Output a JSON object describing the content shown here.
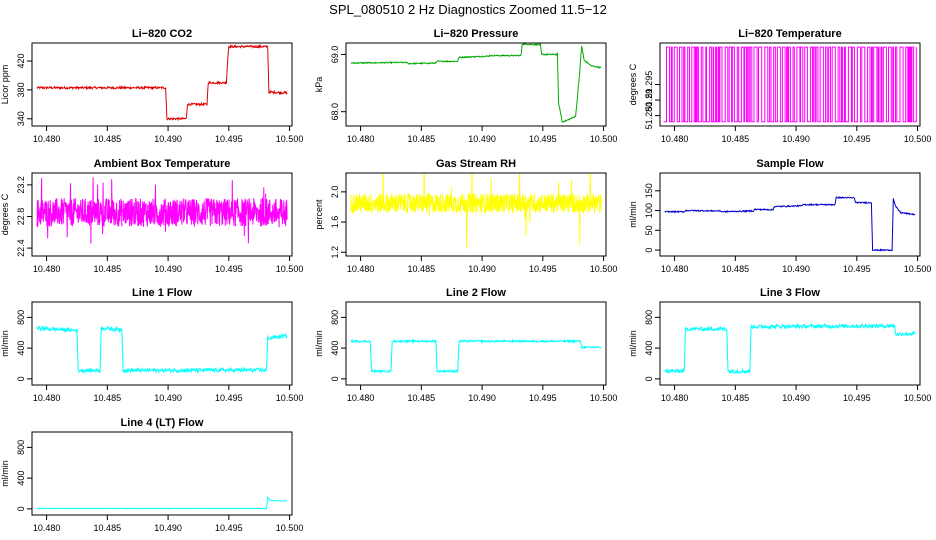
{
  "title": "SPL_080510  2 Hz Diagnostics Zoomed 11.5−12",
  "chart_data": [
    {
      "type": "line",
      "title": "Li−820 CO2",
      "ylabel": "Licor ppm",
      "color": "#dd0000",
      "xlim": [
        10.4788,
        10.5002
      ],
      "ylim": [
        330,
        445
      ],
      "yticks": [
        340,
        380,
        420
      ],
      "xticks": [
        10.48,
        10.485,
        10.49,
        10.495,
        10.5
      ],
      "xtick_labels": [
        "10.480",
        "10.485",
        "10.490",
        "10.495",
        "10.500"
      ],
      "noise": 1.5,
      "points": [
        [
          10.4792,
          383
        ],
        [
          10.4898,
          383
        ],
        [
          10.4899,
          340
        ],
        [
          10.4915,
          340
        ],
        [
          10.4916,
          360
        ],
        [
          10.4932,
          360
        ],
        [
          10.4933,
          390
        ],
        [
          10.4948,
          390
        ],
        [
          10.4949,
          420
        ],
        [
          10.495,
          440
        ],
        [
          10.4982,
          440
        ],
        [
          10.4983,
          377
        ],
        [
          10.4998,
          376
        ]
      ]
    },
    {
      "type": "line",
      "title": "Li−820 Pressure",
      "ylabel": "kPa",
      "color": "#00aa00",
      "xlim": [
        10.4788,
        10.5002
      ],
      "ylim": [
        67.75,
        69.2
      ],
      "yticks": [
        68.0,
        69.0
      ],
      "ytick_labels": [
        "68.0",
        "69.0"
      ],
      "xticks": [
        10.48,
        10.485,
        10.49,
        10.495,
        10.5
      ],
      "xtick_labels": [
        "10.480",
        "10.485",
        "10.490",
        "10.495",
        "10.500"
      ],
      "noise": 0.01,
      "points": [
        [
          10.4792,
          68.85
        ],
        [
          10.4838,
          68.86
        ],
        [
          10.4839,
          68.84
        ],
        [
          10.4862,
          68.85
        ],
        [
          10.4863,
          68.88
        ],
        [
          10.488,
          68.88
        ],
        [
          10.4881,
          68.95
        ],
        [
          10.4905,
          68.97
        ],
        [
          10.4906,
          68.98
        ],
        [
          10.4932,
          68.98
        ],
        [
          10.4933,
          69.18
        ],
        [
          10.4948,
          69.17
        ],
        [
          10.4949,
          69.0
        ],
        [
          10.4962,
          69.0
        ],
        [
          10.4963,
          68.15
        ],
        [
          10.4966,
          67.82
        ],
        [
          10.497,
          67.85
        ],
        [
          10.4977,
          67.92
        ],
        [
          10.498,
          68.6
        ],
        [
          10.4982,
          69.15
        ],
        [
          10.4984,
          68.9
        ],
        [
          10.499,
          68.8
        ],
        [
          10.4998,
          68.77
        ]
      ]
    },
    {
      "type": "line",
      "title": "Li−820 Temperature",
      "ylabel": "degrees C",
      "color": "#ff00ff",
      "xlim": [
        10.4788,
        10.5002
      ],
      "ylim": [
        51.275,
        51.315
      ],
      "yticks": [
        51.28,
        51.295
      ],
      "ytick_labels": [
        "51.280",
        "51.295"
      ],
      "extra_tick_labels": [
        "51.29"
      ],
      "xticks": [
        10.48,
        10.485,
        10.49,
        10.495,
        10.5
      ],
      "xtick_labels": [
        "10.480",
        "10.485",
        "10.490",
        "10.495",
        "10.500"
      ],
      "mode": "toggle",
      "low": 51.277,
      "high": 51.313
    },
    {
      "type": "line",
      "title": "Ambient Box Temperature",
      "ylabel": "degrees C",
      "color": "#ff00ff",
      "xlim": [
        10.4788,
        10.5002
      ],
      "ylim": [
        22.3,
        23.35
      ],
      "yticks": [
        22.4,
        22.8,
        23.2
      ],
      "ytick_labels": [
        "22.4",
        "22.8",
        "23.2"
      ],
      "xticks": [
        10.48,
        10.485,
        10.49,
        10.495,
        10.5
      ],
      "xtick_labels": [
        "10.480",
        "10.485",
        "10.490",
        "10.495",
        "10.500"
      ],
      "mode": "band",
      "center": 22.85,
      "spread": 0.18,
      "spikes": 0.45
    },
    {
      "type": "line",
      "title": "Gas Stream RH",
      "ylabel": "percent",
      "color": "#ffff00",
      "xlim": [
        10.4788,
        10.5002
      ],
      "ylim": [
        1.15,
        2.25
      ],
      "yticks": [
        1.2,
        1.6,
        2.0
      ],
      "ytick_labels": [
        "1.2",
        "1.6",
        "2.0"
      ],
      "xticks": [
        10.48,
        10.485,
        10.49,
        10.495,
        10.5
      ],
      "xtick_labels": [
        "10.480",
        "10.485",
        "10.490",
        "10.495",
        "10.500"
      ],
      "mode": "band",
      "center": 1.85,
      "spread": 0.13,
      "spikes": 0.6
    },
    {
      "type": "line",
      "title": "Sample Flow",
      "ylabel": "ml/min",
      "color": "#0000cc",
      "xlim": [
        10.4788,
        10.5002
      ],
      "ylim": [
        -15,
        195
      ],
      "yticks": [
        0,
        50,
        100,
        150
      ],
      "xticks": [
        10.48,
        10.485,
        10.49,
        10.495,
        10.5
      ],
      "xtick_labels": [
        "10.480",
        "10.485",
        "10.490",
        "10.495",
        "10.500"
      ],
      "noise": 1.5,
      "points": [
        [
          10.4792,
          97
        ],
        [
          10.4808,
          97
        ],
        [
          10.4809,
          100
        ],
        [
          10.4838,
          99
        ],
        [
          10.4839,
          97
        ],
        [
          10.4865,
          99
        ],
        [
          10.4866,
          103
        ],
        [
          10.4881,
          102
        ],
        [
          10.4882,
          110
        ],
        [
          10.4905,
          112
        ],
        [
          10.4906,
          115
        ],
        [
          10.4932,
          115
        ],
        [
          10.4933,
          133
        ],
        [
          10.4948,
          132
        ],
        [
          10.4949,
          120
        ],
        [
          10.4962,
          120
        ],
        [
          10.4963,
          0
        ],
        [
          10.4979,
          0
        ],
        [
          10.498,
          130
        ],
        [
          10.4982,
          110
        ],
        [
          10.4986,
          95
        ],
        [
          10.4992,
          92
        ],
        [
          10.4998,
          90
        ]
      ]
    },
    {
      "type": "line",
      "title": "Line 1 Flow",
      "ylabel": "ml/min",
      "color": "#00ffff",
      "xlim": [
        10.4788,
        10.5002
      ],
      "ylim": [
        -80,
        1000
      ],
      "yticks": [
        0,
        400,
        800
      ],
      "xticks": [
        10.48,
        10.485,
        10.49,
        10.495,
        10.5
      ],
      "xtick_labels": [
        "10.480",
        "10.485",
        "10.490",
        "10.495",
        "10.500"
      ],
      "noise": 25,
      "points": [
        [
          10.4792,
          660
        ],
        [
          10.4825,
          630
        ],
        [
          10.4826,
          110
        ],
        [
          10.4844,
          110
        ],
        [
          10.4845,
          660
        ],
        [
          10.4862,
          640
        ],
        [
          10.4863,
          110
        ],
        [
          10.4981,
          115
        ],
        [
          10.4982,
          530
        ],
        [
          10.4998,
          560
        ]
      ]
    },
    {
      "type": "line",
      "title": "Line 2 Flow",
      "ylabel": "ml/min",
      "color": "#00ffff",
      "xlim": [
        10.4788,
        10.5002
      ],
      "ylim": [
        -80,
        1000
      ],
      "yticks": [
        0,
        400,
        800
      ],
      "xticks": [
        10.48,
        10.485,
        10.49,
        10.495,
        10.5
      ],
      "xtick_labels": [
        "10.480",
        "10.485",
        "10.490",
        "10.495",
        "10.500"
      ],
      "noise": 12,
      "points": [
        [
          10.4792,
          490
        ],
        [
          10.4808,
          490
        ],
        [
          10.4809,
          100
        ],
        [
          10.4825,
          100
        ],
        [
          10.4826,
          490
        ],
        [
          10.4862,
          490
        ],
        [
          10.4863,
          100
        ],
        [
          10.488,
          100
        ],
        [
          10.4881,
          490
        ],
        [
          10.4981,
          490
        ],
        [
          10.4982,
          410
        ],
        [
          10.4998,
          410
        ]
      ]
    },
    {
      "type": "line",
      "title": "Line 3 Flow",
      "ylabel": "ml/min",
      "color": "#00ffff",
      "xlim": [
        10.4788,
        10.5002
      ],
      "ylim": [
        -80,
        1000
      ],
      "yticks": [
        0,
        400,
        800
      ],
      "xticks": [
        10.48,
        10.485,
        10.49,
        10.495,
        10.5
      ],
      "xtick_labels": [
        "10.480",
        "10.485",
        "10.490",
        "10.495",
        "10.500"
      ],
      "noise": 25,
      "points": [
        [
          10.4792,
          100
        ],
        [
          10.4808,
          100
        ],
        [
          10.4809,
          650
        ],
        [
          10.4843,
          650
        ],
        [
          10.4844,
          100
        ],
        [
          10.4862,
          100
        ],
        [
          10.4863,
          680
        ],
        [
          10.4981,
          690
        ],
        [
          10.4982,
          580
        ],
        [
          10.4998,
          590
        ]
      ]
    },
    {
      "type": "line",
      "title": "Line 4 (LT) Flow",
      "ylabel": "ml/min",
      "color": "#00ffff",
      "xlim": [
        10.4788,
        10.5002
      ],
      "ylim": [
        -80,
        1000
      ],
      "yticks": [
        0,
        400,
        800
      ],
      "xticks": [
        10.48,
        10.485,
        10.49,
        10.495,
        10.5
      ],
      "xtick_labels": [
        "10.480",
        "10.485",
        "10.490",
        "10.495",
        "10.500"
      ],
      "noise": 3,
      "points": [
        [
          10.4792,
          5
        ],
        [
          10.4981,
          5
        ],
        [
          10.4982,
          150
        ],
        [
          10.4984,
          110
        ],
        [
          10.4998,
          100
        ]
      ]
    }
  ]
}
